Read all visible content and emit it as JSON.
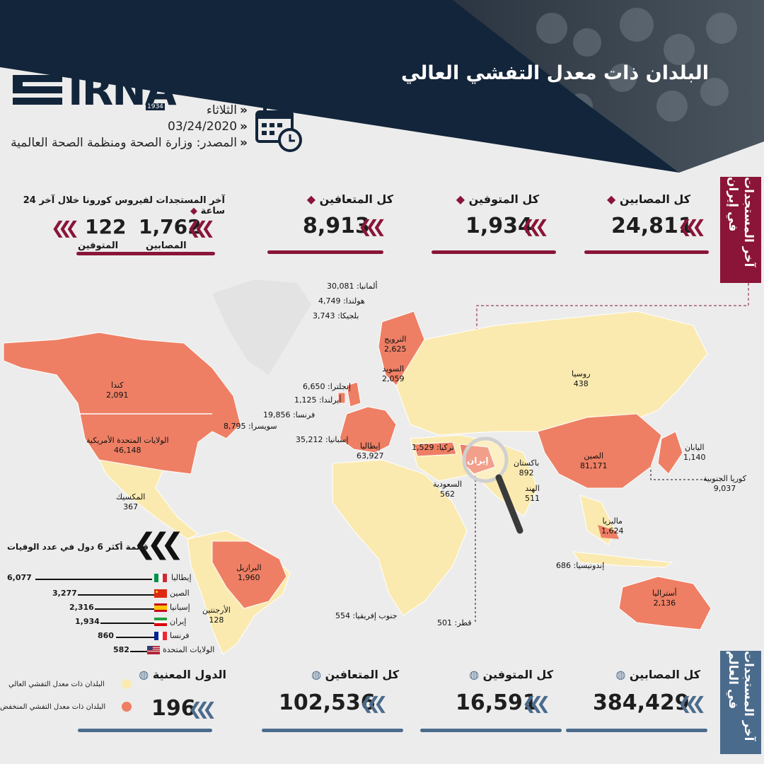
{
  "header": {
    "title": "البلدان ذات معدل التفشي العالي",
    "logo": "IRNA",
    "logo_year": "1934",
    "day": "الثلاثاء",
    "date": "03/24/2020",
    "source": "المصدر: وزارة الصحة ومنظمة الصحة العالمية"
  },
  "iran": {
    "tab_label": "آخر المستجدات في إيران",
    "total_cases_label": "كل المصابين",
    "total_cases": "24,811",
    "total_deaths_label": "كل المتوفين",
    "total_deaths": "1,934",
    "total_recovered_label": "كل المتعافين",
    "total_recovered": "8,913",
    "last24_label": "آخر المستجدات لفيروس كورونا خلال آخر 24 ساعة",
    "last24_cases": "1,762",
    "last24_cases_label": "المصابين",
    "last24_deaths": "122",
    "last24_deaths_label": "المتوفين"
  },
  "map": {
    "iran_label": "إيران",
    "countries": [
      {
        "name": "ألمانيا",
        "value": "30,081"
      },
      {
        "name": "هولندا",
        "value": "4,749"
      },
      {
        "name": "بلجيكا",
        "value": "3,743"
      },
      {
        "name": "النرويج",
        "value": "2,625"
      },
      {
        "name": "السويد",
        "value": "2,059"
      },
      {
        "name": "إنجلترا",
        "value": "6,650"
      },
      {
        "name": "أيرلندا",
        "value": "1,125"
      },
      {
        "name": "فرنسا",
        "value": "19,856"
      },
      {
        "name": "سويسرا",
        "value": "8,795"
      },
      {
        "name": "إسبانيا",
        "value": "35,212"
      },
      {
        "name": "إيطاليا",
        "value": "63,927"
      },
      {
        "name": "تركيا",
        "value": "1,529"
      },
      {
        "name": "روسيا",
        "value": "438"
      },
      {
        "name": "كندا",
        "value": "2,091"
      },
      {
        "name": "الولايات المتحدة الأمريكية",
        "value": "46,148"
      },
      {
        "name": "المكسيك",
        "value": "367"
      },
      {
        "name": "الصين",
        "value": "81,171"
      },
      {
        "name": "اليابان",
        "value": "1,140"
      },
      {
        "name": "كوريا الجنوبية",
        "value": "9,037"
      },
      {
        "name": "باكستان",
        "value": "892"
      },
      {
        "name": "الهند",
        "value": "511"
      },
      {
        "name": "السعودية",
        "value": "562"
      },
      {
        "name": "ماليزيا",
        "value": "1,624"
      },
      {
        "name": "إندونيسيا",
        "value": "686"
      },
      {
        "name": "أستراليا",
        "value": "2,136"
      },
      {
        "name": "البرازيل",
        "value": "1,960"
      },
      {
        "name": "الأرجنتين",
        "value": "128"
      },
      {
        "name": "جنوب إفريقيا",
        "value": "554"
      },
      {
        "name": "قطر",
        "value": "501"
      }
    ]
  },
  "deaths_list": {
    "title": "قائمة أكثر 6 دول في عدد الوفيات",
    "rows": [
      {
        "country": "إيطاليا",
        "value": "6,077"
      },
      {
        "country": "الصين",
        "value": "3,277"
      },
      {
        "country": "إسبانيا",
        "value": "2,316"
      },
      {
        "country": "إيران",
        "value": "1,934"
      },
      {
        "country": "فرنسا",
        "value": "860"
      },
      {
        "country": "الولايات المتحدة",
        "value": "582"
      }
    ]
  },
  "world": {
    "tab_label": "آخر المستجدات في العالم",
    "total_cases_label": "كل المصابين",
    "total_cases": "384,429",
    "total_deaths_label": "كل المتوفين",
    "total_deaths": "16,591",
    "total_recovered_label": "كل المتعافين",
    "total_recovered": "102,536",
    "countries_label": "الدول المعنية",
    "countries": "196",
    "legend_high": "البلدان ذات معدل التفشي العالي",
    "legend_low": "البلدان ذات معدل التفشي المنخفض"
  },
  "colors": {
    "navy": "#13253a",
    "maroon": "#8a1538",
    "steel": "#4b6b8c",
    "high": "#ee7f64",
    "low": "#fbeab0"
  }
}
